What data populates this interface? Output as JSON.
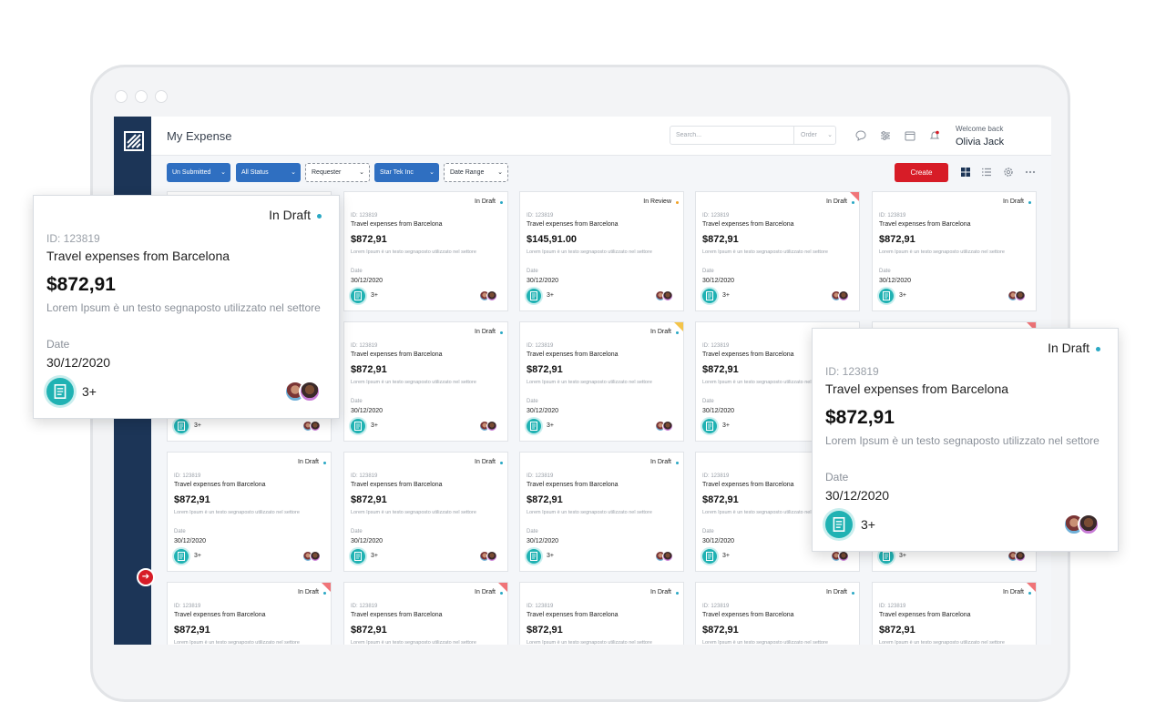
{
  "header": {
    "page_title": "My Expense",
    "search_placeholder": "Search...",
    "order_label": "Order",
    "welcome": "Welcome back",
    "user_name": "Olivia Jack"
  },
  "filters": [
    {
      "label": "Un Submitted",
      "style": "solid"
    },
    {
      "label": "All Status",
      "style": "solid"
    },
    {
      "label": "Requester",
      "style": "dashed"
    },
    {
      "label": "Star Tek Inc",
      "style": "solid"
    },
    {
      "label": "Date Range",
      "style": "dashed"
    }
  ],
  "create_label": "Create",
  "colors": {
    "accent": "#d71c27",
    "sidebar": "#1c3557",
    "filter": "#2f6fc1",
    "file_badge": "#20b2b3",
    "status_dot": "#2aa8c4"
  },
  "card_defaults": {
    "id": "ID: 123819",
    "title": "Travel expenses from Barcelona",
    "amount": "$872,91",
    "description": "Lorem Ipsum è un testo segnaposto utilizzato nel settore",
    "date_label": "Date",
    "date": "30/12/2020",
    "attachments": "3+"
  },
  "cards": [
    {
      "status": "In Draft",
      "dot": "blue",
      "corner": ""
    },
    {
      "status": "In Draft",
      "dot": "blue",
      "corner": ""
    },
    {
      "status": "In Review",
      "dot": "orange",
      "corner": "",
      "amount": "$145,91.00"
    },
    {
      "status": "In Draft",
      "dot": "blue",
      "corner": "red"
    },
    {
      "status": "In Draft",
      "dot": "blue",
      "corner": ""
    },
    {
      "status": "In Draft",
      "dot": "blue",
      "corner": ""
    },
    {
      "status": "In Draft",
      "dot": "blue",
      "corner": ""
    },
    {
      "status": "In Draft",
      "dot": "blue",
      "corner": "yellow"
    },
    {
      "status": "In Draft",
      "dot": "blue",
      "corner": ""
    },
    {
      "status": "In Draft",
      "dot": "blue",
      "corner": "red"
    },
    {
      "status": "In Draft",
      "dot": "blue",
      "corner": ""
    },
    {
      "status": "In Draft",
      "dot": "blue",
      "corner": ""
    },
    {
      "status": "In Draft",
      "dot": "blue",
      "corner": ""
    },
    {
      "status": "In Draft",
      "dot": "blue",
      "corner": ""
    },
    {
      "status": "In Draft",
      "dot": "blue",
      "corner": ""
    },
    {
      "status": "In Draft",
      "dot": "blue",
      "corner": "red"
    },
    {
      "status": "In Draft",
      "dot": "blue",
      "corner": "red"
    },
    {
      "status": "In Draft",
      "dot": "blue",
      "corner": ""
    },
    {
      "status": "In Draft",
      "dot": "blue",
      "corner": ""
    },
    {
      "status": "In Draft",
      "dot": "blue",
      "corner": "red"
    }
  ],
  "popups": [
    {
      "status": "In Draft"
    },
    {
      "status": "In Draft"
    }
  ]
}
